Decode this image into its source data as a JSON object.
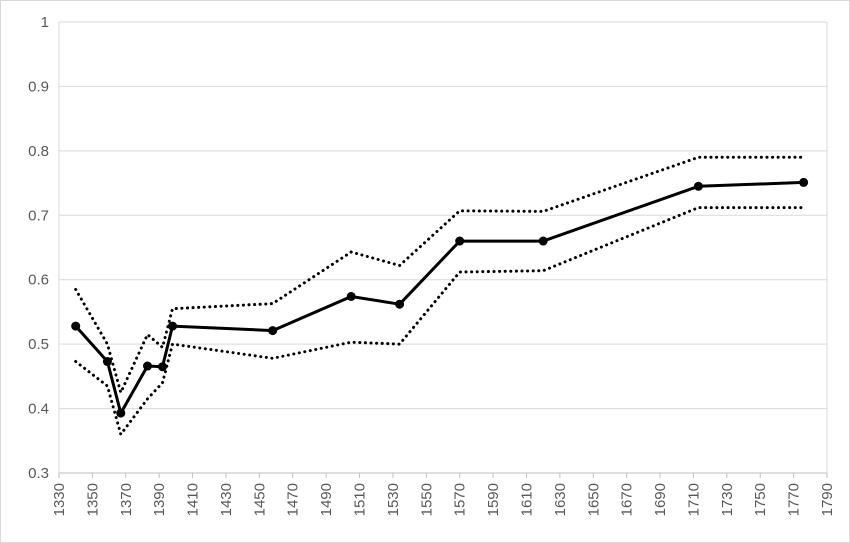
{
  "chart_data": {
    "type": "line",
    "title": "",
    "xlabel": "",
    "ylabel": "",
    "xlim": [
      1330,
      1790
    ],
    "ylim": [
      0.3,
      1.0
    ],
    "x_ticks": [
      1330,
      1350,
      1370,
      1390,
      1410,
      1430,
      1450,
      1470,
      1490,
      1510,
      1530,
      1550,
      1570,
      1590,
      1610,
      1630,
      1650,
      1670,
      1690,
      1710,
      1730,
      1750,
      1770,
      1790
    ],
    "x_tick_labels": [
      "1330",
      "1350",
      "1370",
      "1390",
      "1410",
      "1430",
      "1450",
      "1470",
      "1490",
      "1510",
      "1530",
      "1550",
      "1570",
      "1590",
      "1610",
      "1630",
      "1650",
      "1670",
      "1690",
      "1710",
      "1730",
      "1750",
      "1770",
      "1790"
    ],
    "y_ticks": [
      0.3,
      0.4,
      0.5,
      0.6,
      0.7,
      0.8,
      0.9,
      1.0
    ],
    "y_tick_labels": [
      "0.3",
      "0.4",
      "0.5",
      "0.6",
      "0.7",
      "0.8",
      "0.9",
      "1"
    ],
    "grid": "horizontal",
    "legend": "none",
    "series": [
      {
        "style": "solid-with-markers",
        "color": "#000000",
        "x": [
          1340,
          1359,
          1367,
          1383,
          1392,
          1398,
          1458,
          1505,
          1534,
          1570,
          1620,
          1713,
          1776
        ],
        "y": [
          0.528,
          0.473,
          0.393,
          0.466,
          0.465,
          0.528,
          0.521,
          0.574,
          0.562,
          0.66,
          0.66,
          0.745,
          0.751
        ]
      },
      {
        "style": "dotted",
        "color": "#000000",
        "x": [
          1340,
          1359,
          1367,
          1383,
          1392,
          1398,
          1458,
          1505,
          1534,
          1570,
          1620,
          1713,
          1776
        ],
        "y": [
          0.585,
          0.5,
          0.425,
          0.515,
          0.495,
          0.555,
          0.563,
          0.643,
          0.622,
          0.707,
          0.706,
          0.79,
          0.79
        ]
      },
      {
        "style": "dotted",
        "color": "#000000",
        "x": [
          1340,
          1359,
          1367,
          1383,
          1392,
          1398,
          1458,
          1505,
          1534,
          1570,
          1620,
          1713,
          1776
        ],
        "y": [
          0.473,
          0.435,
          0.36,
          0.415,
          0.44,
          0.5,
          0.478,
          0.503,
          0.5,
          0.612,
          0.614,
          0.712,
          0.712
        ]
      }
    ]
  }
}
